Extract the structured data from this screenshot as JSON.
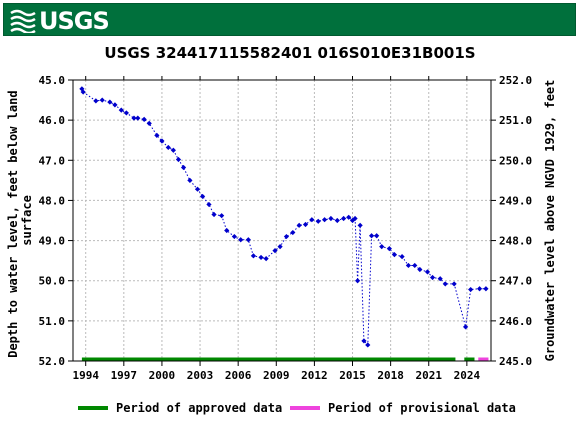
{
  "header": {
    "logo_text": "USGS",
    "logo_icon": "usgs-wave-icon"
  },
  "chart_data": {
    "type": "scatter",
    "title": "USGS 324417115582401 016S010E31B001S",
    "ylabel_left": "Depth to water level, feet below land surface",
    "ylabel_left_lines": [
      "Depth to water level, feet below land",
      "surface"
    ],
    "ylabel_right": "Groundwater level above NGVD 1929, feet",
    "x_ticks": [
      "1994",
      "1997",
      "2000",
      "2003",
      "2006",
      "2009",
      "2012",
      "2015",
      "2018",
      "2021",
      "2024"
    ],
    "x_tick_values": [
      1994,
      1997,
      2000,
      2003,
      2006,
      2009,
      2012,
      2015,
      2018,
      2021,
      2024
    ],
    "xlim": [
      1993.0,
      2025.9
    ],
    "y_left_ticks": [
      "45.0",
      "46.0",
      "47.0",
      "48.0",
      "49.0",
      "50.0",
      "51.0",
      "52.0"
    ],
    "y_left_tick_values": [
      45,
      46,
      47,
      48,
      49,
      50,
      51,
      52
    ],
    "ylim_left": [
      45.0,
      52.0
    ],
    "y_right_ticks": [
      "252.0",
      "251.0",
      "250.0",
      "249.0",
      "248.0",
      "247.0",
      "246.0",
      "245.0"
    ],
    "y_right_tick_values": [
      252,
      251,
      250,
      249,
      248,
      247,
      246,
      245
    ],
    "ylim_right": [
      245.0,
      252.0
    ],
    "grid": true,
    "colors": {
      "points": "#0000cc",
      "approved": "#008800",
      "provisional": "#ee44dd",
      "grid": "#bbbbbb"
    },
    "series": [
      {
        "marker": "diamond",
        "x": [
          1993.7,
          1993.8,
          1994.8,
          1995.3,
          1995.9,
          1996.3,
          1996.8,
          1997.2,
          1997.8,
          1998.1,
          1998.6,
          1999.0,
          1999.6,
          2000.0,
          2000.5,
          2000.9,
          2001.3,
          2001.7,
          2002.2,
          2002.8,
          2003.2,
          2003.7,
          2004.1,
          2004.7,
          2005.1,
          2005.7,
          2006.2,
          2006.8,
          2007.2,
          2007.8,
          2008.2,
          2008.9,
          2009.3,
          2009.8,
          2010.3,
          2010.8,
          2011.3,
          2011.8,
          2012.3,
          2012.8,
          2013.3,
          2013.8,
          2014.3,
          2014.7,
          2015.0,
          2015.2,
          2015.4,
          2015.6,
          2015.9,
          2016.2,
          2016.5,
          2016.9,
          2017.3,
          2017.9,
          2018.3,
          2018.9,
          2019.4,
          2019.9,
          2020.3,
          2020.9,
          2021.3,
          2021.9,
          2022.3,
          2023.0,
          2023.9,
          2024.3,
          2025.0,
          2025.5
        ],
        "y": [
          45.22,
          45.3,
          45.52,
          45.5,
          45.55,
          45.62,
          45.75,
          45.82,
          45.95,
          45.95,
          45.98,
          46.08,
          46.38,
          46.52,
          46.68,
          46.75,
          46.98,
          47.18,
          47.5,
          47.72,
          47.9,
          48.1,
          48.35,
          48.38,
          48.75,
          48.9,
          48.98,
          48.98,
          49.38,
          49.42,
          49.45,
          49.25,
          49.15,
          48.9,
          48.8,
          48.62,
          48.6,
          48.48,
          48.52,
          48.48,
          48.45,
          48.5,
          48.45,
          48.42,
          48.5,
          48.45,
          50.0,
          48.62,
          51.5,
          51.6,
          48.88,
          48.88,
          49.15,
          49.2,
          49.35,
          49.4,
          49.62,
          49.62,
          49.72,
          49.78,
          49.92,
          49.95,
          50.08,
          50.08,
          51.15,
          50.22,
          50.2,
          50.2
        ]
      }
    ],
    "periods": [
      {
        "label": "Period of approved data",
        "from": 1993.7,
        "to": 2023.1,
        "color": "#008800"
      },
      {
        "label": "Period of approved data",
        "from": 2023.8,
        "to": 2024.6,
        "color": "#008800"
      },
      {
        "label": "Period of provisional data",
        "from": 2024.9,
        "to": 2025.7,
        "color": "#ee44dd"
      }
    ],
    "legend": [
      {
        "label": "Period of approved data",
        "color": "#008800"
      },
      {
        "label": "Period of provisional data",
        "color": "#ee44dd"
      }
    ],
    "legend_position": "bottom"
  }
}
